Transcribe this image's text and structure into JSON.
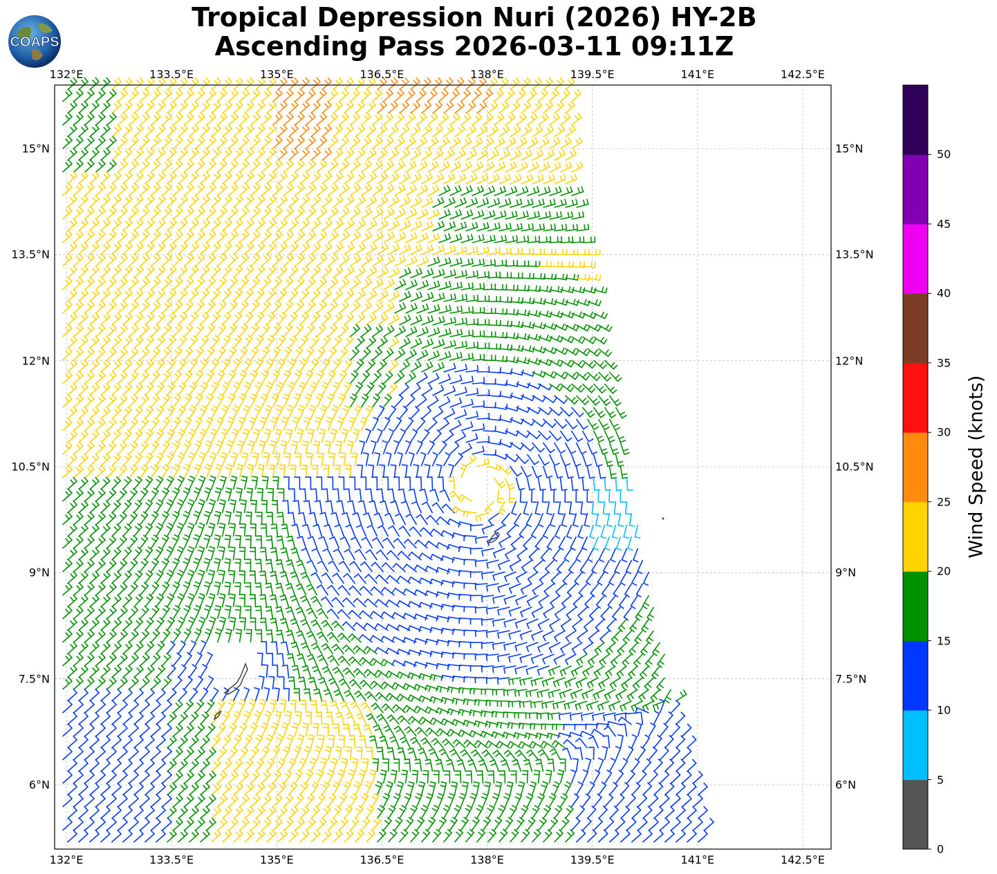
{
  "title": {
    "line1": "Tropical Depression Nuri (2026) HY-2B",
    "line2": "Ascending Pass 2026-03-11 09:11Z"
  },
  "logo": {
    "text": "COAPS",
    "icon": "globe-logo-icon"
  },
  "axes": {
    "lon_labels": [
      "132°E",
      "133.5°E",
      "135°E",
      "136.5°E",
      "138°E",
      "139.5°E",
      "141°E",
      "142.5°E"
    ],
    "lat_labels": [
      "15°N",
      "13.5°N",
      "12°N",
      "10.5°N",
      "9°N",
      "7.5°N",
      "6°N"
    ]
  },
  "colorbar": {
    "label": "Wind Speed (knots)",
    "ticks": [
      "0",
      "5",
      "10",
      "15",
      "20",
      "25",
      "30",
      "35",
      "40",
      "45",
      "50"
    ],
    "colors": [
      "#555555",
      "#00bfff",
      "#0038ff",
      "#009100",
      "#ffd400",
      "#ff8a0d",
      "#ff1010",
      "#7c3c26",
      "#f000f0",
      "#8200b4",
      "#2e0058"
    ]
  },
  "map": {
    "grid": true,
    "storm_center_approx": "10.5°N 137.9°E",
    "colors_present": [
      "#0038ff",
      "#009100",
      "#ffd400",
      "#ff8a0d",
      "#00bfff"
    ]
  }
}
